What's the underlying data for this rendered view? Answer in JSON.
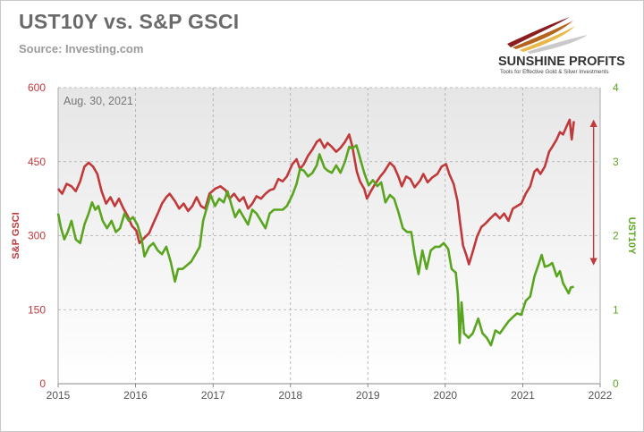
{
  "header": {
    "title": "UST10Y vs. S&P GSCI",
    "source": "Source: Investing.com"
  },
  "logo": {
    "name": "SUNSHINE PROFITS",
    "tagline": "Tools for Effective Gold & Silver Investments"
  },
  "colors": {
    "gsci": "#c0393b",
    "ust": "#5aa51f",
    "annotation_arrow": "#c0393b",
    "left_axis_text": "#c0393b",
    "right_axis_text": "#5aa51f"
  },
  "chart_data": {
    "type": "line",
    "annotation": "Aug. 30, 2021",
    "x_ticks": [
      "2015",
      "2016",
      "2017",
      "2018",
      "2019",
      "2020",
      "2021",
      "2022"
    ],
    "xlim": [
      "2015-01-01",
      "2022-01-01"
    ],
    "y_left": {
      "label": "S&P GSCI",
      "ticks": [
        "0",
        "150",
        "300",
        "450",
        "600"
      ],
      "lim": [
        0,
        600
      ]
    },
    "y_right": {
      "label": "UST10Y",
      "ticks": [
        "0",
        "1",
        "2",
        "3",
        "4"
      ],
      "lim": [
        0,
        4
      ]
    },
    "grid": true,
    "arrow_range": {
      "x": "2021-12-01",
      "from_gsci": 535,
      "to_gsci": 240
    },
    "series": [
      {
        "axis": "left",
        "points": [
          [
            "2015-01-01",
            395
          ],
          [
            "2015-01-20",
            385
          ],
          [
            "2015-02-10",
            405
          ],
          [
            "2015-03-05",
            400
          ],
          [
            "2015-03-25",
            390
          ],
          [
            "2015-04-15",
            410
          ],
          [
            "2015-05-05",
            440
          ],
          [
            "2015-05-25",
            448
          ],
          [
            "2015-06-15",
            440
          ],
          [
            "2015-07-05",
            425
          ],
          [
            "2015-07-25",
            390
          ],
          [
            "2015-08-15",
            365
          ],
          [
            "2015-09-05",
            378
          ],
          [
            "2015-09-25",
            360
          ],
          [
            "2015-10-15",
            375
          ],
          [
            "2015-11-05",
            355
          ],
          [
            "2015-11-25",
            340
          ],
          [
            "2015-12-15",
            320
          ],
          [
            "2016-01-05",
            310
          ],
          [
            "2016-01-20",
            285
          ],
          [
            "2016-02-10",
            295
          ],
          [
            "2016-03-05",
            305
          ],
          [
            "2016-03-25",
            325
          ],
          [
            "2016-04-15",
            345
          ],
          [
            "2016-05-05",
            365
          ],
          [
            "2016-05-25",
            378
          ],
          [
            "2016-06-10",
            385
          ],
          [
            "2016-07-05",
            370
          ],
          [
            "2016-07-25",
            355
          ],
          [
            "2016-08-15",
            365
          ],
          [
            "2016-09-05",
            350
          ],
          [
            "2016-09-25",
            360
          ],
          [
            "2016-10-15",
            378
          ],
          [
            "2016-11-05",
            360
          ],
          [
            "2016-11-25",
            355
          ],
          [
            "2016-12-15",
            385
          ],
          [
            "2017-01-10",
            395
          ],
          [
            "2017-02-05",
            400
          ],
          [
            "2017-03-01",
            392
          ],
          [
            "2017-03-20",
            375
          ],
          [
            "2017-04-10",
            385
          ],
          [
            "2017-05-05",
            370
          ],
          [
            "2017-05-25",
            378
          ],
          [
            "2017-06-15",
            355
          ],
          [
            "2017-07-05",
            365
          ],
          [
            "2017-07-25",
            380
          ],
          [
            "2017-08-15",
            375
          ],
          [
            "2017-09-05",
            385
          ],
          [
            "2017-09-25",
            392
          ],
          [
            "2017-10-15",
            395
          ],
          [
            "2017-11-05",
            415
          ],
          [
            "2017-11-25",
            410
          ],
          [
            "2017-12-15",
            420
          ],
          [
            "2018-01-10",
            445
          ],
          [
            "2018-01-30",
            455
          ],
          [
            "2018-02-15",
            435
          ],
          [
            "2018-03-05",
            445
          ],
          [
            "2018-03-25",
            462
          ],
          [
            "2018-04-15",
            475
          ],
          [
            "2018-05-05",
            490
          ],
          [
            "2018-05-20",
            495
          ],
          [
            "2018-06-10",
            478
          ],
          [
            "2018-06-25",
            488
          ],
          [
            "2018-07-15",
            480
          ],
          [
            "2018-08-05",
            470
          ],
          [
            "2018-08-25",
            478
          ],
          [
            "2018-09-15",
            490
          ],
          [
            "2018-10-05",
            505
          ],
          [
            "2018-10-20",
            480
          ],
          [
            "2018-11-10",
            430
          ],
          [
            "2018-11-25",
            410
          ],
          [
            "2018-12-15",
            395
          ],
          [
            "2018-12-28",
            375
          ],
          [
            "2019-01-15",
            390
          ],
          [
            "2019-02-05",
            405
          ],
          [
            "2019-03-01",
            420
          ],
          [
            "2019-03-20",
            430
          ],
          [
            "2019-04-15",
            448
          ],
          [
            "2019-05-05",
            440
          ],
          [
            "2019-05-25",
            420
          ],
          [
            "2019-06-10",
            400
          ],
          [
            "2019-07-01",
            420
          ],
          [
            "2019-07-20",
            415
          ],
          [
            "2019-08-10",
            398
          ],
          [
            "2019-09-05",
            412
          ],
          [
            "2019-09-20",
            425
          ],
          [
            "2019-10-10",
            408
          ],
          [
            "2019-11-01",
            418
          ],
          [
            "2019-11-25",
            425
          ],
          [
            "2019-12-15",
            440
          ],
          [
            "2020-01-05",
            445
          ],
          [
            "2020-01-20",
            425
          ],
          [
            "2020-02-10",
            405
          ],
          [
            "2020-02-28",
            370
          ],
          [
            "2020-03-10",
            330
          ],
          [
            "2020-03-25",
            280
          ],
          [
            "2020-04-10",
            260
          ],
          [
            "2020-04-22",
            242
          ],
          [
            "2020-05-10",
            268
          ],
          [
            "2020-05-30",
            298
          ],
          [
            "2020-06-20",
            318
          ],
          [
            "2020-07-10",
            325
          ],
          [
            "2020-08-01",
            335
          ],
          [
            "2020-08-25",
            345
          ],
          [
            "2020-09-15",
            335
          ],
          [
            "2020-10-05",
            345
          ],
          [
            "2020-10-25",
            330
          ],
          [
            "2020-11-15",
            355
          ],
          [
            "2020-12-05",
            360
          ],
          [
            "2020-12-25",
            365
          ],
          [
            "2021-01-15",
            385
          ],
          [
            "2021-02-05",
            400
          ],
          [
            "2021-02-25",
            430
          ],
          [
            "2021-03-10",
            435
          ],
          [
            "2021-03-25",
            425
          ],
          [
            "2021-04-15",
            440
          ],
          [
            "2021-05-05",
            470
          ],
          [
            "2021-05-20",
            480
          ],
          [
            "2021-06-10",
            495
          ],
          [
            "2021-06-25",
            510
          ],
          [
            "2021-07-10",
            505
          ],
          [
            "2021-07-25",
            520
          ],
          [
            "2021-08-10",
            535
          ],
          [
            "2021-08-20",
            495
          ],
          [
            "2021-08-30",
            532
          ]
        ]
      },
      {
        "axis": "right",
        "points": [
          [
            "2015-01-01",
            2.3
          ],
          [
            "2015-01-15",
            2.1
          ],
          [
            "2015-01-30",
            1.95
          ],
          [
            "2015-02-15",
            2.05
          ],
          [
            "2015-03-05",
            2.2
          ],
          [
            "2015-03-25",
            1.95
          ],
          [
            "2015-04-15",
            1.9
          ],
          [
            "2015-05-05",
            2.15
          ],
          [
            "2015-05-25",
            2.3
          ],
          [
            "2015-06-10",
            2.45
          ],
          [
            "2015-06-25",
            2.35
          ],
          [
            "2015-07-10",
            2.4
          ],
          [
            "2015-07-30",
            2.2
          ],
          [
            "2015-08-20",
            2.1
          ],
          [
            "2015-09-10",
            2.2
          ],
          [
            "2015-09-30",
            2.05
          ],
          [
            "2015-10-20",
            2.1
          ],
          [
            "2015-11-10",
            2.3
          ],
          [
            "2015-11-30",
            2.2
          ],
          [
            "2015-12-20",
            2.25
          ],
          [
            "2016-01-10",
            2.15
          ],
          [
            "2016-01-30",
            1.95
          ],
          [
            "2016-02-12",
            1.72
          ],
          [
            "2016-03-05",
            1.85
          ],
          [
            "2016-03-25",
            1.9
          ],
          [
            "2016-04-15",
            1.8
          ],
          [
            "2016-05-05",
            1.75
          ],
          [
            "2016-05-25",
            1.85
          ],
          [
            "2016-06-15",
            1.65
          ],
          [
            "2016-07-05",
            1.38
          ],
          [
            "2016-07-20",
            1.55
          ],
          [
            "2016-08-10",
            1.55
          ],
          [
            "2016-08-30",
            1.6
          ],
          [
            "2016-09-20",
            1.65
          ],
          [
            "2016-10-10",
            1.75
          ],
          [
            "2016-10-30",
            1.85
          ],
          [
            "2016-11-15",
            2.2
          ],
          [
            "2016-12-05",
            2.4
          ],
          [
            "2016-12-20",
            2.55
          ],
          [
            "2017-01-10",
            2.4
          ],
          [
            "2017-01-30",
            2.5
          ],
          [
            "2017-02-20",
            2.45
          ],
          [
            "2017-03-10",
            2.6
          ],
          [
            "2017-03-30",
            2.4
          ],
          [
            "2017-04-15",
            2.25
          ],
          [
            "2017-05-05",
            2.35
          ],
          [
            "2017-05-25",
            2.25
          ],
          [
            "2017-06-15",
            2.15
          ],
          [
            "2017-07-05",
            2.35
          ],
          [
            "2017-07-25",
            2.3
          ],
          [
            "2017-08-15",
            2.2
          ],
          [
            "2017-09-05",
            2.1
          ],
          [
            "2017-09-25",
            2.3
          ],
          [
            "2017-10-15",
            2.35
          ],
          [
            "2017-11-05",
            2.35
          ],
          [
            "2017-11-25",
            2.35
          ],
          [
            "2017-12-15",
            2.4
          ],
          [
            "2018-01-10",
            2.55
          ],
          [
            "2018-01-30",
            2.7
          ],
          [
            "2018-02-15",
            2.9
          ],
          [
            "2018-03-05",
            2.88
          ],
          [
            "2018-03-25",
            2.8
          ],
          [
            "2018-04-15",
            2.85
          ],
          [
            "2018-05-05",
            2.95
          ],
          [
            "2018-05-18",
            3.1
          ],
          [
            "2018-06-10",
            2.92
          ],
          [
            "2018-06-25",
            2.88
          ],
          [
            "2018-07-15",
            2.85
          ],
          [
            "2018-08-05",
            2.95
          ],
          [
            "2018-08-25",
            2.85
          ],
          [
            "2018-09-15",
            3.0
          ],
          [
            "2018-10-05",
            3.2
          ],
          [
            "2018-10-20",
            3.18
          ],
          [
            "2018-11-08",
            3.22
          ],
          [
            "2018-11-25",
            3.05
          ],
          [
            "2018-12-15",
            2.85
          ],
          [
            "2019-01-05",
            2.68
          ],
          [
            "2019-01-25",
            2.75
          ],
          [
            "2019-02-15",
            2.67
          ],
          [
            "2019-03-05",
            2.72
          ],
          [
            "2019-03-25",
            2.45
          ],
          [
            "2019-04-15",
            2.55
          ],
          [
            "2019-05-05",
            2.5
          ],
          [
            "2019-05-25",
            2.32
          ],
          [
            "2019-06-15",
            2.1
          ],
          [
            "2019-07-05",
            2.05
          ],
          [
            "2019-07-25",
            2.05
          ],
          [
            "2019-08-10",
            1.75
          ],
          [
            "2019-08-28",
            1.48
          ],
          [
            "2019-09-15",
            1.8
          ],
          [
            "2019-10-05",
            1.55
          ],
          [
            "2019-10-25",
            1.8
          ],
          [
            "2019-11-15",
            1.85
          ],
          [
            "2019-12-05",
            1.85
          ],
          [
            "2019-12-25",
            1.9
          ],
          [
            "2020-01-15",
            1.82
          ],
          [
            "2020-01-31",
            1.55
          ],
          [
            "2020-02-20",
            1.5
          ],
          [
            "2020-03-01",
            1.2
          ],
          [
            "2020-03-09",
            0.55
          ],
          [
            "2020-03-18",
            1.1
          ],
          [
            "2020-03-30",
            0.68
          ],
          [
            "2020-04-20",
            0.62
          ],
          [
            "2020-05-10",
            0.68
          ],
          [
            "2020-06-05",
            0.88
          ],
          [
            "2020-06-25",
            0.68
          ],
          [
            "2020-07-15",
            0.62
          ],
          [
            "2020-08-04",
            0.52
          ],
          [
            "2020-08-25",
            0.72
          ],
          [
            "2020-09-15",
            0.68
          ],
          [
            "2020-10-05",
            0.76
          ],
          [
            "2020-10-25",
            0.84
          ],
          [
            "2020-11-15",
            0.9
          ],
          [
            "2020-12-05",
            0.95
          ],
          [
            "2020-12-25",
            0.93
          ],
          [
            "2021-01-15",
            1.12
          ],
          [
            "2021-02-05",
            1.18
          ],
          [
            "2021-02-25",
            1.45
          ],
          [
            "2021-03-15",
            1.6
          ],
          [
            "2021-03-31",
            1.74
          ],
          [
            "2021-04-15",
            1.58
          ],
          [
            "2021-05-05",
            1.6
          ],
          [
            "2021-05-20",
            1.63
          ],
          [
            "2021-06-10",
            1.45
          ],
          [
            "2021-06-25",
            1.52
          ],
          [
            "2021-07-10",
            1.36
          ],
          [
            "2021-07-25",
            1.28
          ],
          [
            "2021-08-05",
            1.22
          ],
          [
            "2021-08-15",
            1.3
          ],
          [
            "2021-08-30",
            1.31
          ]
        ]
      }
    ]
  }
}
